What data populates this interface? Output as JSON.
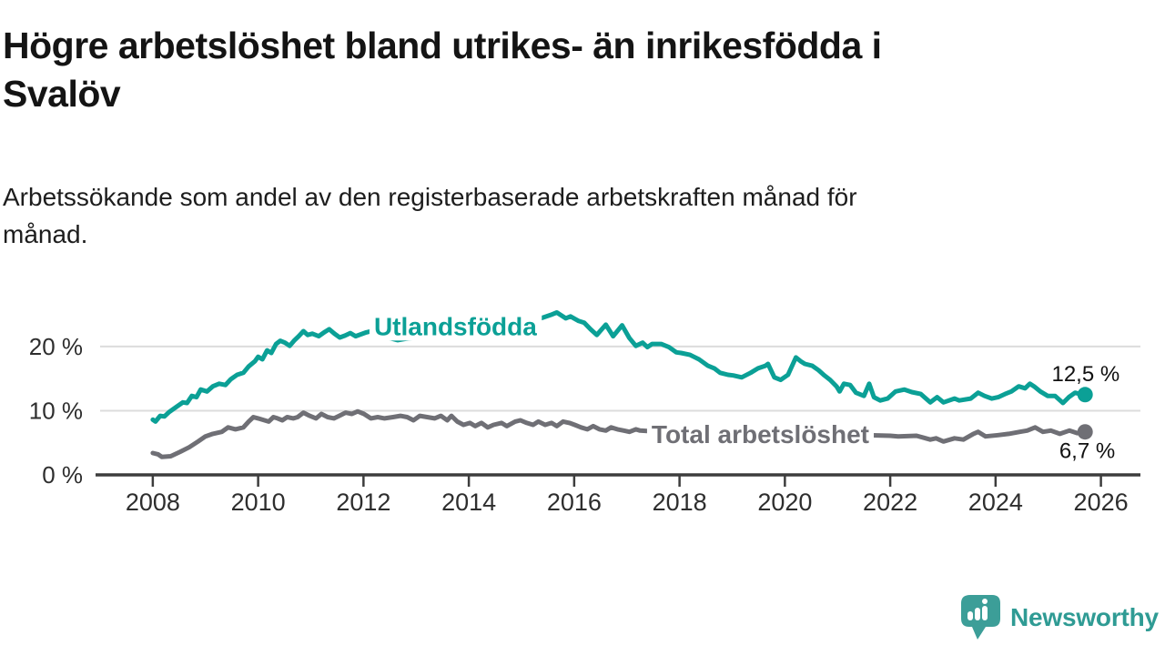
{
  "header": {
    "title": "Högre arbetslöshet bland utrikes- än inrikesfödda i Svalöv",
    "title_lines": [
      "Högre arbetslöshet bland utrikes- än inrikesfödda i",
      "Svalöv"
    ],
    "subtitle": "Arbetssökande som andel av den registerbaserade arbetskraften månad för månad.",
    "subtitle_lines": [
      "Arbetssökande som andel av den registerbaserade arbetskraften månad för",
      "månad."
    ]
  },
  "footer": {
    "brand": "Newsworthy",
    "logo_icon": "bar-chart-speech-bubble-icon"
  },
  "colors": {
    "teal_series": "#0ba096",
    "gray_series": "#6f6f75",
    "gridline": "#dcdcdc",
    "axis_line": "#3d3d3d",
    "axis_text": "#2e2e2e",
    "value_label_text": "#111111",
    "title_text": "#141414",
    "logo_teal": "#3c9e98",
    "background": "#ffffff"
  },
  "chart_data": {
    "type": "line",
    "unit": "%",
    "grid": "horizontal-only",
    "x_axis": {
      "range": [
        2007,
        2026.75
      ],
      "ticks": [
        2008,
        2010,
        2012,
        2014,
        2016,
        2018,
        2020,
        2022,
        2024,
        2026
      ],
      "tick_labels": [
        "2008",
        "2010",
        "2012",
        "2014",
        "2016",
        "2018",
        "2020",
        "2022",
        "2024",
        "2026"
      ]
    },
    "y_axis": {
      "range": [
        0,
        25.8
      ],
      "ticks": [
        0,
        10,
        20
      ],
      "tick_labels": [
        "0 %",
        "10 %",
        "20 %"
      ]
    },
    "series": [
      {
        "id": "utlandsfodda",
        "name": "Utlandsfödda",
        "color": "#0ba096",
        "end_label": "12,5 %",
        "end_value": 12.5,
        "label_pos": {
          "x": 2012.2,
          "y": 23.2
        },
        "points": [
          [
            2008.0,
            8.6
          ],
          [
            2008.05,
            8.3
          ],
          [
            2008.14,
            9.2
          ],
          [
            2008.22,
            9.1
          ],
          [
            2008.31,
            9.8
          ],
          [
            2008.45,
            10.6
          ],
          [
            2008.57,
            11.3
          ],
          [
            2008.65,
            11.2
          ],
          [
            2008.74,
            12.3
          ],
          [
            2008.83,
            12.1
          ],
          [
            2008.91,
            13.3
          ],
          [
            2009.03,
            13.0
          ],
          [
            2009.14,
            13.8
          ],
          [
            2009.26,
            14.2
          ],
          [
            2009.38,
            14.0
          ],
          [
            2009.48,
            14.9
          ],
          [
            2009.6,
            15.6
          ],
          [
            2009.72,
            15.9
          ],
          [
            2009.82,
            16.9
          ],
          [
            2009.94,
            17.7
          ],
          [
            2010.0,
            18.4
          ],
          [
            2010.08,
            18.0
          ],
          [
            2010.17,
            19.4
          ],
          [
            2010.25,
            19.0
          ],
          [
            2010.34,
            20.4
          ],
          [
            2010.42,
            20.9
          ],
          [
            2010.51,
            20.6
          ],
          [
            2010.6,
            20.1
          ],
          [
            2010.68,
            20.9
          ],
          [
            2010.77,
            21.6
          ],
          [
            2010.86,
            22.4
          ],
          [
            2010.94,
            21.8
          ],
          [
            2011.03,
            22.0
          ],
          [
            2011.15,
            21.6
          ],
          [
            2011.27,
            22.3
          ],
          [
            2011.35,
            22.7
          ],
          [
            2011.45,
            22.0
          ],
          [
            2011.55,
            21.4
          ],
          [
            2011.65,
            21.7
          ],
          [
            2011.75,
            22.1
          ],
          [
            2011.85,
            21.6
          ],
          [
            2011.95,
            21.9
          ],
          [
            2012.05,
            22.2
          ],
          [
            2012.15,
            22.4
          ],
          [
            2012.25,
            21.8
          ],
          [
            2012.35,
            22.0
          ],
          [
            2012.45,
            21.4
          ],
          [
            2012.55,
            21.2
          ],
          [
            2012.65,
            21.0
          ],
          [
            2012.8,
            21.2
          ],
          [
            2013.0,
            21.4
          ],
          [
            2013.2,
            21.6
          ],
          [
            2013.4,
            21.8
          ],
          [
            2013.6,
            22.0
          ],
          [
            2013.8,
            22.2
          ],
          [
            2014.0,
            22.5
          ],
          [
            2014.2,
            22.7
          ],
          [
            2014.4,
            22.9
          ],
          [
            2014.6,
            23.1
          ],
          [
            2014.8,
            23.3
          ],
          [
            2015.0,
            23.6
          ],
          [
            2015.2,
            24.0
          ],
          [
            2015.4,
            24.5
          ],
          [
            2015.55,
            24.9
          ],
          [
            2015.67,
            25.3
          ],
          [
            2015.84,
            24.4
          ],
          [
            2015.93,
            24.7
          ],
          [
            2016.08,
            24.0
          ],
          [
            2016.19,
            23.7
          ],
          [
            2016.31,
            22.7
          ],
          [
            2016.43,
            21.8
          ],
          [
            2016.6,
            23.4
          ],
          [
            2016.74,
            21.6
          ],
          [
            2016.91,
            23.3
          ],
          [
            2017.05,
            21.3
          ],
          [
            2017.17,
            20.1
          ],
          [
            2017.3,
            20.6
          ],
          [
            2017.39,
            19.9
          ],
          [
            2017.48,
            20.4
          ],
          [
            2017.65,
            20.4
          ],
          [
            2017.8,
            19.9
          ],
          [
            2017.94,
            19.1
          ],
          [
            2018.03,
            19.0
          ],
          [
            2018.2,
            18.7
          ],
          [
            2018.37,
            18.0
          ],
          [
            2018.54,
            17.0
          ],
          [
            2018.66,
            16.6
          ],
          [
            2018.77,
            15.9
          ],
          [
            2018.92,
            15.6
          ],
          [
            2019.02,
            15.5
          ],
          [
            2019.18,
            15.2
          ],
          [
            2019.35,
            15.9
          ],
          [
            2019.49,
            16.6
          ],
          [
            2019.63,
            17.0
          ],
          [
            2019.68,
            17.3
          ],
          [
            2019.8,
            15.2
          ],
          [
            2019.92,
            14.8
          ],
          [
            2020.06,
            15.6
          ],
          [
            2020.21,
            18.3
          ],
          [
            2020.3,
            17.7
          ],
          [
            2020.38,
            17.3
          ],
          [
            2020.52,
            17.0
          ],
          [
            2020.64,
            16.3
          ],
          [
            2020.75,
            15.5
          ],
          [
            2020.86,
            14.8
          ],
          [
            2020.98,
            13.8
          ],
          [
            2021.04,
            13.0
          ],
          [
            2021.12,
            14.2
          ],
          [
            2021.24,
            14.0
          ],
          [
            2021.35,
            12.8
          ],
          [
            2021.5,
            12.3
          ],
          [
            2021.6,
            14.2
          ],
          [
            2021.69,
            12.1
          ],
          [
            2021.81,
            11.6
          ],
          [
            2021.95,
            11.9
          ],
          [
            2022.1,
            13.0
          ],
          [
            2022.27,
            13.3
          ],
          [
            2022.41,
            12.9
          ],
          [
            2022.58,
            12.6
          ],
          [
            2022.76,
            11.3
          ],
          [
            2022.89,
            12.1
          ],
          [
            2023.01,
            11.3
          ],
          [
            2023.22,
            11.9
          ],
          [
            2023.31,
            11.6
          ],
          [
            2023.53,
            11.9
          ],
          [
            2023.67,
            12.8
          ],
          [
            2023.79,
            12.3
          ],
          [
            2023.93,
            11.9
          ],
          [
            2024.05,
            12.1
          ],
          [
            2024.18,
            12.6
          ],
          [
            2024.3,
            13.0
          ],
          [
            2024.44,
            13.8
          ],
          [
            2024.56,
            13.5
          ],
          [
            2024.65,
            14.2
          ],
          [
            2024.73,
            13.8
          ],
          [
            2024.85,
            13.0
          ],
          [
            2024.99,
            12.3
          ],
          [
            2025.13,
            12.3
          ],
          [
            2025.28,
            11.2
          ],
          [
            2025.39,
            12.1
          ],
          [
            2025.51,
            12.8
          ],
          [
            2025.6,
            12.6
          ],
          [
            2025.7,
            12.5
          ]
        ]
      },
      {
        "id": "total",
        "name": "Total arbetslöshet",
        "color": "#6f6f75",
        "end_label": "6,7 %",
        "end_value": 6.7,
        "label_pos": {
          "x": 2017.47,
          "y": 6.4
        },
        "points": [
          [
            2008.0,
            3.4
          ],
          [
            2008.1,
            3.2
          ],
          [
            2008.17,
            2.8
          ],
          [
            2008.34,
            2.9
          ],
          [
            2008.52,
            3.6
          ],
          [
            2008.69,
            4.3
          ],
          [
            2008.86,
            5.2
          ],
          [
            2009.0,
            6.0
          ],
          [
            2009.14,
            6.4
          ],
          [
            2009.31,
            6.7
          ],
          [
            2009.43,
            7.4
          ],
          [
            2009.57,
            7.1
          ],
          [
            2009.72,
            7.4
          ],
          [
            2009.82,
            8.3
          ],
          [
            2009.91,
            9.0
          ],
          [
            2010.0,
            8.8
          ],
          [
            2010.12,
            8.5
          ],
          [
            2010.2,
            8.3
          ],
          [
            2010.29,
            9.0
          ],
          [
            2010.37,
            8.8
          ],
          [
            2010.46,
            8.5
          ],
          [
            2010.55,
            9.0
          ],
          [
            2010.67,
            8.8
          ],
          [
            2010.75,
            9.0
          ],
          [
            2010.86,
            9.7
          ],
          [
            2010.98,
            9.2
          ],
          [
            2011.1,
            8.8
          ],
          [
            2011.2,
            9.5
          ],
          [
            2011.32,
            9.0
          ],
          [
            2011.44,
            8.8
          ],
          [
            2011.54,
            9.2
          ],
          [
            2011.66,
            9.7
          ],
          [
            2011.78,
            9.5
          ],
          [
            2011.89,
            9.9
          ],
          [
            2012.01,
            9.5
          ],
          [
            2012.14,
            8.8
          ],
          [
            2012.27,
            9.0
          ],
          [
            2012.4,
            8.8
          ],
          [
            2012.56,
            9.0
          ],
          [
            2012.7,
            9.2
          ],
          [
            2012.83,
            9.0
          ],
          [
            2012.95,
            8.5
          ],
          [
            2013.07,
            9.2
          ],
          [
            2013.21,
            9.0
          ],
          [
            2013.35,
            8.8
          ],
          [
            2013.47,
            9.2
          ],
          [
            2013.59,
            8.5
          ],
          [
            2013.67,
            9.2
          ],
          [
            2013.78,
            8.3
          ],
          [
            2013.9,
            7.8
          ],
          [
            2014.02,
            8.1
          ],
          [
            2014.12,
            7.6
          ],
          [
            2014.24,
            8.1
          ],
          [
            2014.36,
            7.4
          ],
          [
            2014.47,
            7.8
          ],
          [
            2014.62,
            8.1
          ],
          [
            2014.72,
            7.6
          ],
          [
            2014.88,
            8.3
          ],
          [
            2014.98,
            8.5
          ],
          [
            2015.1,
            8.1
          ],
          [
            2015.22,
            7.8
          ],
          [
            2015.32,
            8.3
          ],
          [
            2015.45,
            7.8
          ],
          [
            2015.57,
            8.1
          ],
          [
            2015.67,
            7.6
          ],
          [
            2015.79,
            8.3
          ],
          [
            2015.91,
            8.1
          ],
          [
            2016.01,
            7.8
          ],
          [
            2016.13,
            7.4
          ],
          [
            2016.25,
            7.1
          ],
          [
            2016.36,
            7.6
          ],
          [
            2016.48,
            7.1
          ],
          [
            2016.6,
            6.9
          ],
          [
            2016.7,
            7.4
          ],
          [
            2016.82,
            7.1
          ],
          [
            2016.94,
            6.9
          ],
          [
            2017.05,
            6.7
          ],
          [
            2017.17,
            7.1
          ],
          [
            2017.25,
            6.9
          ],
          [
            2017.45,
            6.8
          ],
          [
            2018.0,
            6.5
          ],
          [
            2018.5,
            6.3
          ],
          [
            2019.0,
            6.1
          ],
          [
            2019.5,
            6.0
          ],
          [
            2020.0,
            6.3
          ],
          [
            2020.25,
            7.3
          ],
          [
            2020.6,
            7.0
          ],
          [
            2021.0,
            6.6
          ],
          [
            2021.5,
            6.2
          ],
          [
            2022.0,
            6.1
          ],
          [
            2022.15,
            6.0
          ],
          [
            2022.5,
            6.1
          ],
          [
            2022.76,
            5.5
          ],
          [
            2022.87,
            5.7
          ],
          [
            2023.01,
            5.2
          ],
          [
            2023.22,
            5.7
          ],
          [
            2023.39,
            5.5
          ],
          [
            2023.58,
            6.4
          ],
          [
            2023.67,
            6.7
          ],
          [
            2023.81,
            6.0
          ],
          [
            2024.05,
            6.2
          ],
          [
            2024.25,
            6.4
          ],
          [
            2024.46,
            6.7
          ],
          [
            2024.6,
            6.9
          ],
          [
            2024.75,
            7.4
          ],
          [
            2024.9,
            6.7
          ],
          [
            2025.05,
            6.9
          ],
          [
            2025.22,
            6.4
          ],
          [
            2025.4,
            6.9
          ],
          [
            2025.55,
            6.5
          ],
          [
            2025.7,
            6.7
          ]
        ]
      }
    ]
  }
}
